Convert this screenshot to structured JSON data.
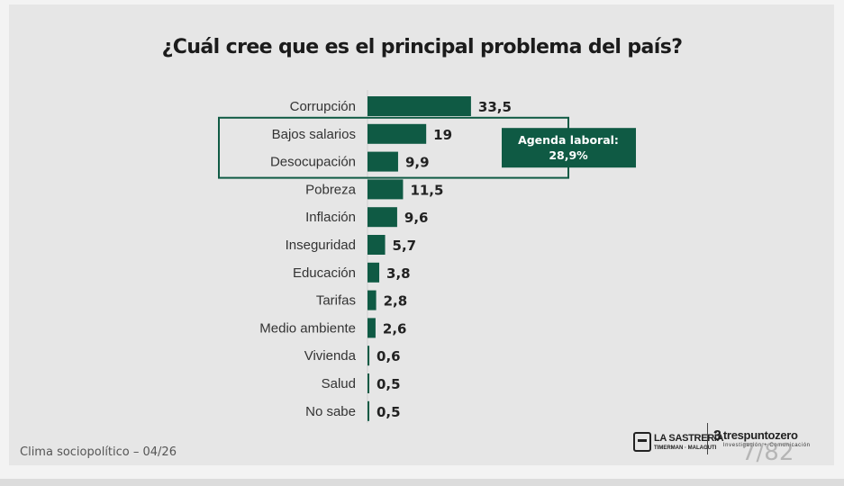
{
  "title": "¿Cuál cree que es el principal problema del país?",
  "footer": {
    "label": "Clima sociopolítico – 04/26",
    "page_number": "7/82"
  },
  "logos": {
    "left": {
      "name": "LA SASTRERÍA",
      "subtitle": "TIMERMAN · MALAGUTI"
    },
    "right": {
      "prefix": "3",
      "name": "trespuntozero",
      "subtitle": "Investigación + Comunicación"
    }
  },
  "colors": {
    "bar": "#0f5a44",
    "highlight_border": "#0f5a44",
    "callout_bg": "#0f5a44",
    "callout_text": "#ffffff"
  },
  "chart_data": {
    "type": "bar",
    "orientation": "horizontal",
    "title": "¿Cuál cree que es el principal problema del país?",
    "xlabel": "",
    "ylabel": "",
    "xlim": [
      0,
      35
    ],
    "categories": [
      "Corrupción",
      "Bajos salarios",
      "Desocupación",
      "Pobreza",
      "Inflación",
      "Inseguridad",
      "Educación",
      "Tarifas",
      "Medio ambiente",
      "Vivienda",
      "Salud",
      "No sabe"
    ],
    "values": [
      33.5,
      19,
      9.9,
      11.5,
      9.6,
      5.7,
      3.8,
      2.8,
      2.6,
      0.6,
      0.5,
      0.5
    ],
    "value_labels": [
      "33,5",
      "19",
      "9,9",
      "11,5",
      "9,6",
      "5,7",
      "3,8",
      "2,8",
      "2,6",
      "0,6",
      "0,5",
      "0,5"
    ],
    "highlight": {
      "categories": [
        "Bajos salarios",
        "Desocupación"
      ],
      "label_line1": "Agenda laboral:",
      "label_line2": "28,9%"
    }
  }
}
